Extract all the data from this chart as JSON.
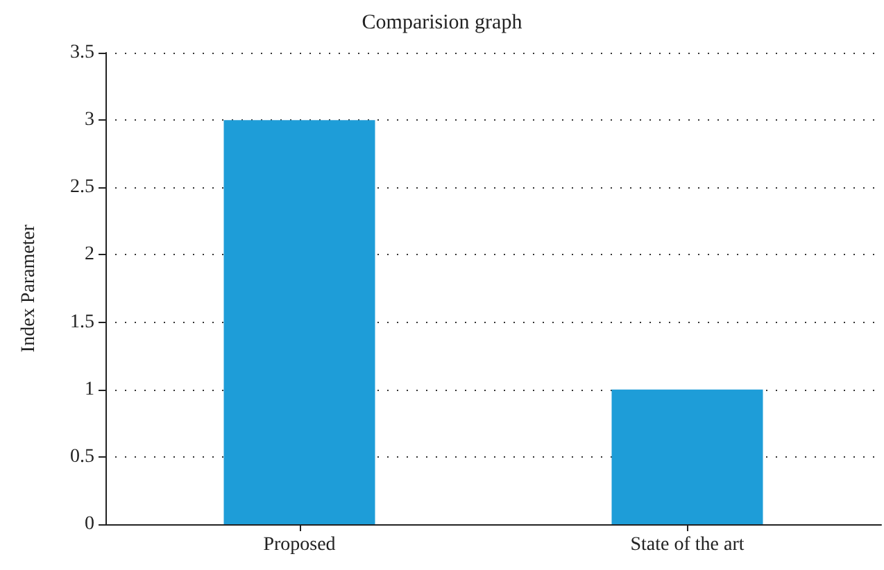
{
  "chart_data": {
    "type": "bar",
    "title": "Comparision graph",
    "ylabel": "Index Parameter",
    "categories": [
      "Proposed",
      "State of the art"
    ],
    "values": [
      3,
      1
    ],
    "color": "#1e9dd8",
    "ylim": [
      0,
      3.5
    ],
    "yticks": [
      0,
      0.5,
      1,
      1.5,
      2,
      2.5,
      3,
      3.5
    ],
    "grid": "y"
  }
}
